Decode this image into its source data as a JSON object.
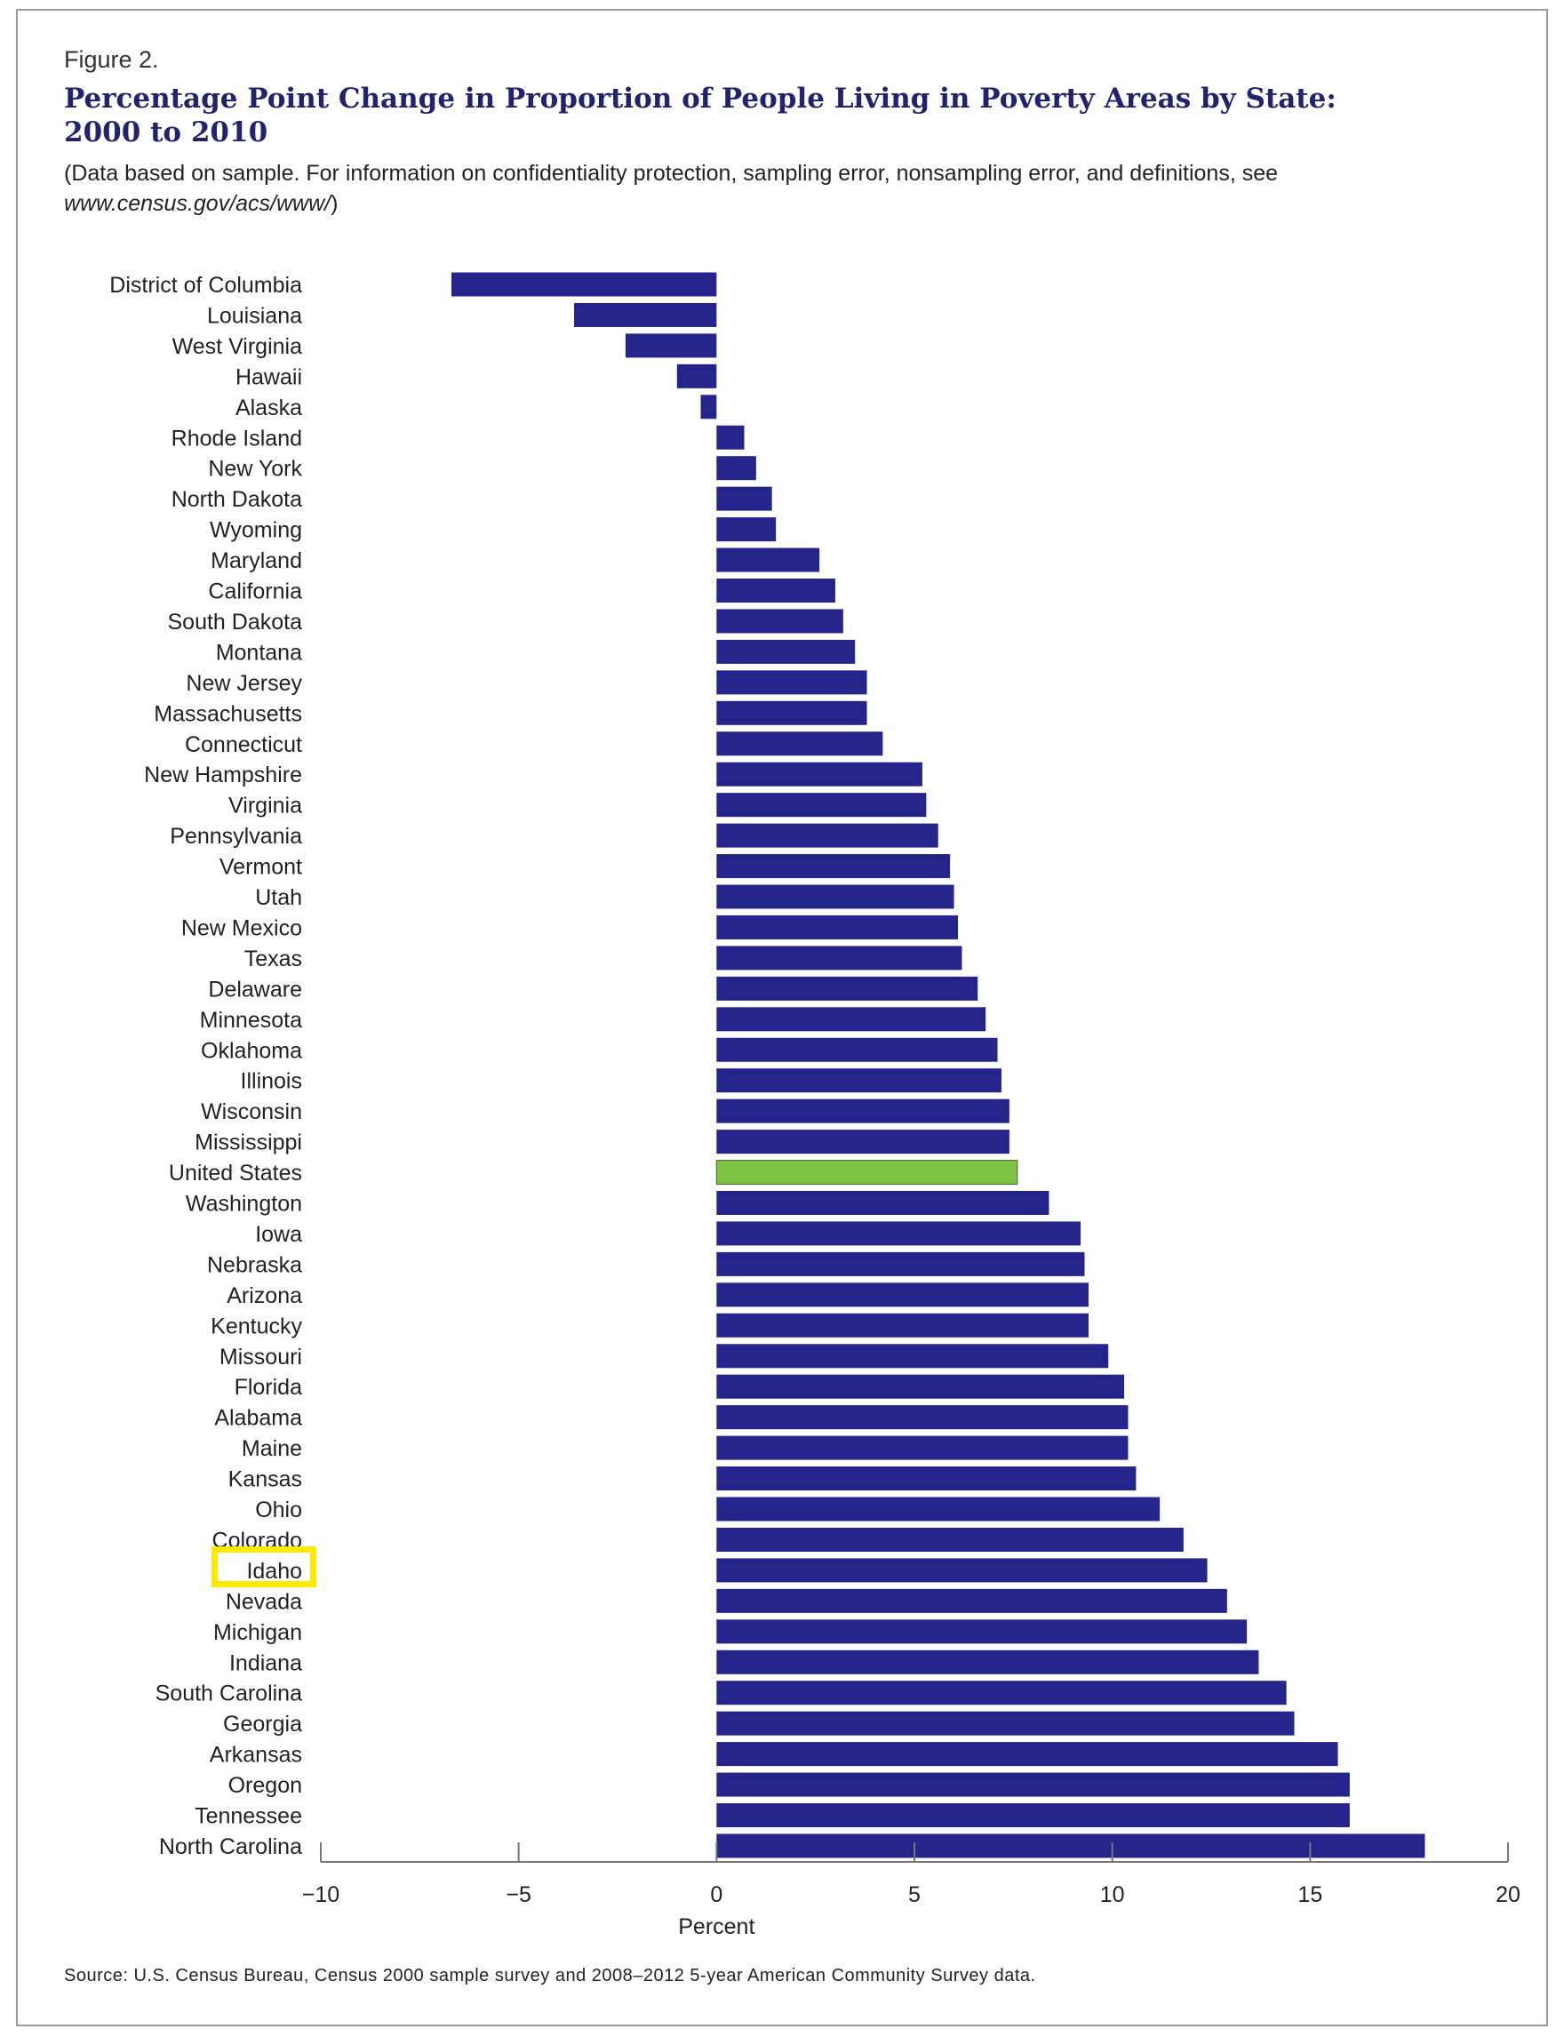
{
  "figure_label": "Figure 2.",
  "title": "Percentage Point Change in Proportion of People Living in Poverty Areas by State: 2000 to 2010",
  "note_prefix": "(Data based on sample. For information on confidentiality protection, sampling error, nonsampling error, and definitions, see ",
  "note_link": "www.census.gov/acs/www/",
  "note_suffix": ")",
  "source": "Source: U.S. Census Bureau, Census 2000 sample survey and 2008–2012 5-year American Community Survey data.",
  "colors": {
    "bar": "#24248a",
    "highlight_bar": "#7dc242",
    "highlight_box": "#ffea00",
    "title": "#22226e"
  },
  "chart_data": {
    "type": "bar",
    "orientation": "horizontal",
    "xlabel": "Percent",
    "xlim": [
      -10,
      20
    ],
    "xticks": [
      -10,
      -5,
      0,
      5,
      10,
      15,
      20
    ],
    "xtick_labels": [
      "−10",
      "−5",
      "0",
      "5",
      "10",
      "15",
      "20"
    ],
    "grid": false,
    "highlighted_bar": "United States",
    "highlighted_label_box": "Idaho",
    "categories": [
      "District of Columbia",
      "Louisiana",
      "West Virginia",
      "Hawaii",
      "Alaska",
      "Rhode Island",
      "New York",
      "North Dakota",
      "Wyoming",
      "Maryland",
      "California",
      "South Dakota",
      "Montana",
      "New Jersey",
      "Massachusetts",
      "Connecticut",
      "New Hampshire",
      "Virginia",
      "Pennsylvania",
      "Vermont",
      "Utah",
      "New Mexico",
      "Texas",
      "Delaware",
      "Minnesota",
      "Oklahoma",
      "Illinois",
      "Wisconsin",
      "Mississippi",
      "United States",
      "Washington",
      "Iowa",
      "Nebraska",
      "Arizona",
      "Kentucky",
      "Missouri",
      "Florida",
      "Alabama",
      "Maine",
      "Kansas",
      "Ohio",
      "Colorado",
      "Idaho",
      "Nevada",
      "Michigan",
      "Indiana",
      "South Carolina",
      "Georgia",
      "Arkansas",
      "Oregon",
      "Tennessee",
      "North Carolina"
    ],
    "values": [
      -6.7,
      -3.6,
      -2.3,
      -1.0,
      -0.4,
      0.7,
      1.0,
      1.4,
      1.5,
      2.6,
      3.0,
      3.2,
      3.5,
      3.8,
      3.8,
      4.2,
      5.2,
      5.3,
      5.6,
      5.9,
      6.0,
      6.1,
      6.2,
      6.6,
      6.8,
      7.1,
      7.2,
      7.4,
      7.4,
      7.6,
      8.4,
      9.2,
      9.3,
      9.4,
      9.4,
      9.9,
      10.3,
      10.4,
      10.4,
      10.6,
      11.2,
      11.8,
      12.4,
      12.9,
      13.4,
      13.7,
      14.4,
      14.6,
      15.7,
      16.0,
      16.0,
      17.9
    ]
  }
}
